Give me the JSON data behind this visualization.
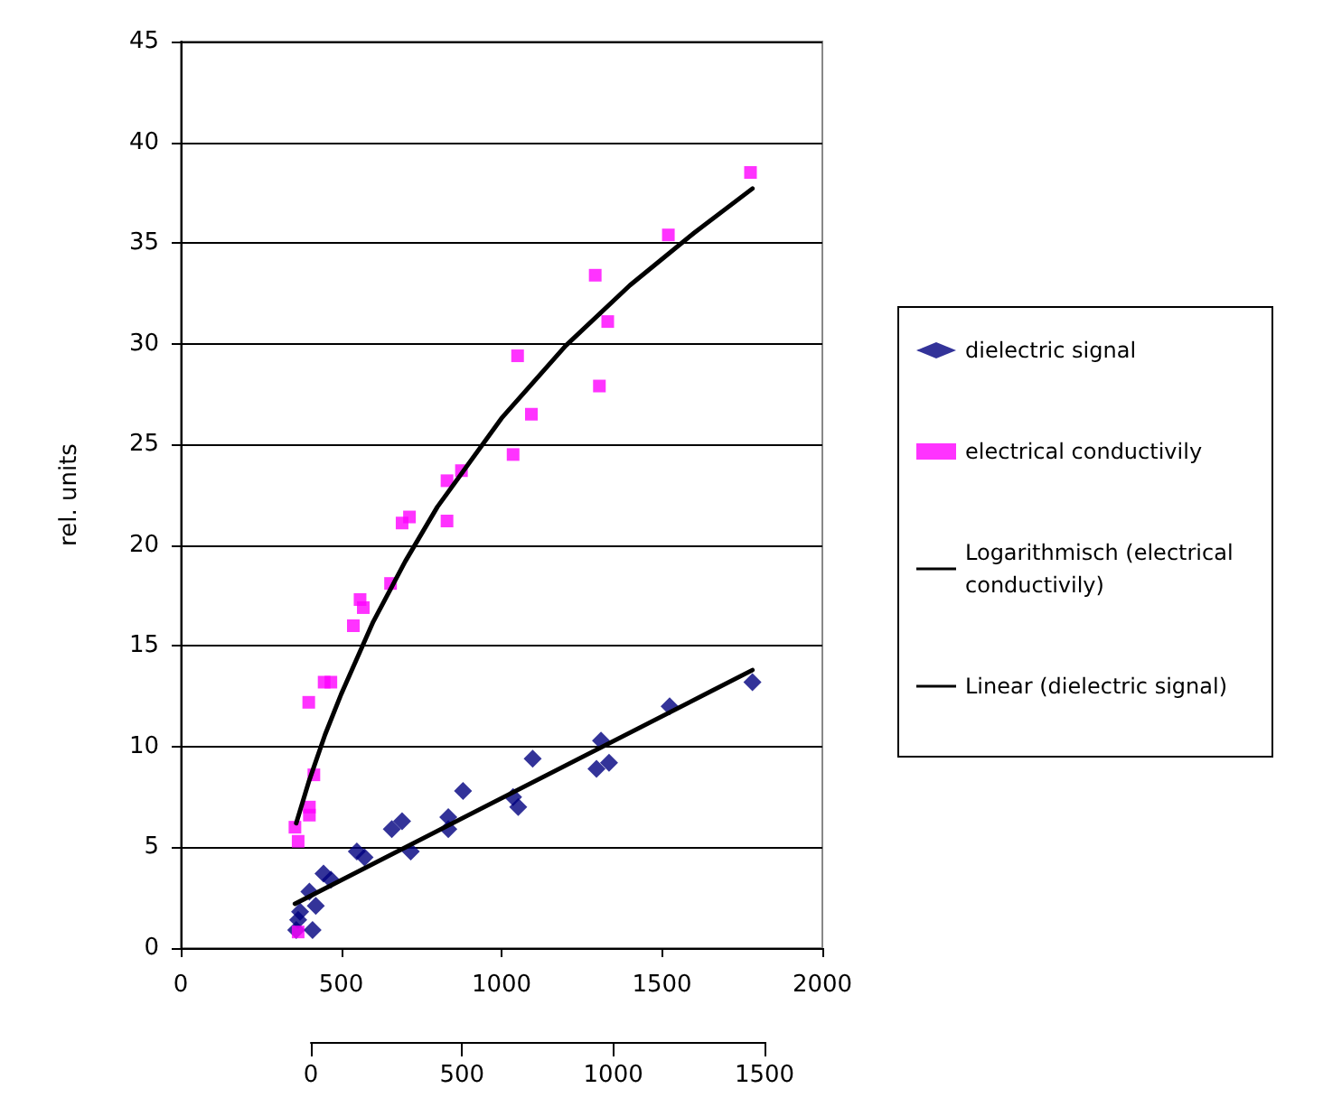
{
  "chart_data": {
    "type": "scatter",
    "ylabel": "rel. units",
    "xlim": [
      0,
      2000
    ],
    "xticks": [
      0,
      500,
      1000,
      1500,
      2000
    ],
    "ylim": [
      0,
      45
    ],
    "yticks": [
      0,
      5,
      10,
      15,
      20,
      25,
      30,
      35,
      40,
      45
    ],
    "x2lim": [
      0,
      1500
    ],
    "x2ticks": [
      0,
      500,
      1000,
      1500
    ],
    "grid": "y",
    "legend": "right",
    "series": [
      {
        "name": "dielectric signal",
        "type": "scatter",
        "marker": "diamond",
        "color": "#000080",
        "x": [
          880,
          834,
          834,
          717,
          690,
          658,
          573,
          549,
          468,
          445,
          421,
          401,
          372,
          366,
          360,
          411,
          1036,
          1052,
          1097,
          1296,
          1310,
          1335,
          1524,
          1782
        ],
        "values": [
          7.8,
          6.5,
          5.9,
          4.8,
          6.3,
          5.9,
          4.5,
          4.8,
          3.4,
          3.7,
          2.1,
          2.8,
          1.8,
          1.4,
          0.9,
          0.9,
          7.5,
          7.0,
          9.4,
          8.9,
          10.3,
          9.2,
          12.0,
          13.2
        ]
      },
      {
        "name": "electrical conductivily",
        "type": "scatter",
        "marker": "square",
        "color": "#ff00ff",
        "x": [
          356,
          366,
          401,
          401,
          415,
          399,
          447,
          468,
          538,
          559,
          569,
          654,
          690,
          713,
          830,
          830,
          875,
          1050,
          1036,
          1093,
          1292,
          1331,
          1305,
          1520,
          1776,
          366
        ],
        "values": [
          6.0,
          5.3,
          7.0,
          6.6,
          8.6,
          12.2,
          13.2,
          13.2,
          16.0,
          17.3,
          16.9,
          18.1,
          21.1,
          21.4,
          23.2,
          21.2,
          23.7,
          29.4,
          24.5,
          26.5,
          33.4,
          31.1,
          27.9,
          35.4,
          38.5,
          0.8
        ]
      },
      {
        "name": "Logarithmisch (electrical conductivily)",
        "type": "line",
        "marker": "none",
        "line_style": "solid",
        "color": "#000000",
        "x": [
          360,
          400,
          450,
          500,
          600,
          700,
          800,
          1000,
          1200,
          1400,
          1600,
          1782
        ],
        "values": [
          6.2,
          8.3,
          10.6,
          12.6,
          16.2,
          19.2,
          21.9,
          26.3,
          29.9,
          32.9,
          35.5,
          37.7
        ]
      },
      {
        "name": "Linear (dielectric signal)",
        "type": "line",
        "marker": "none",
        "line_style": "solid",
        "color": "#000000",
        "x": [
          356,
          1782
        ],
        "values": [
          2.2,
          13.8
        ]
      }
    ]
  }
}
